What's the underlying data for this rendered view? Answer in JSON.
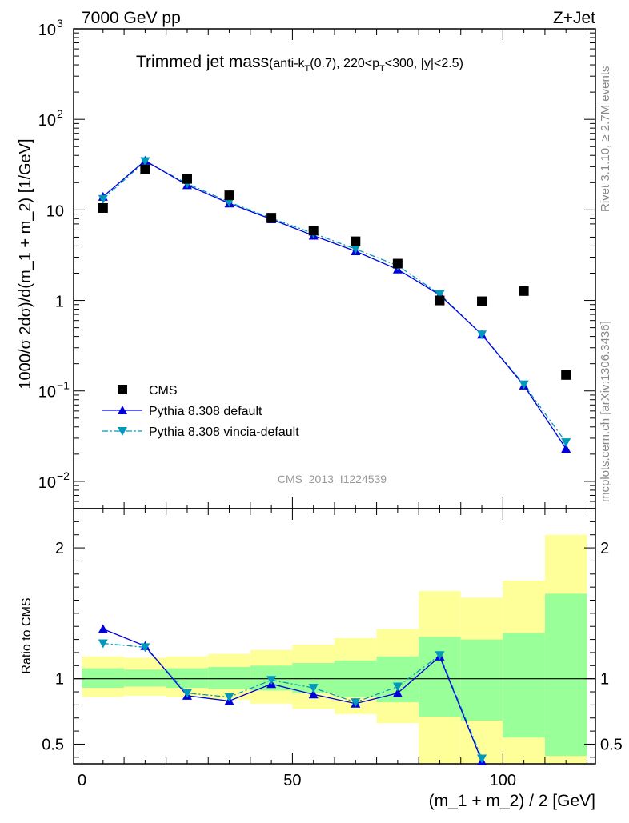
{
  "header": {
    "left": "7000 GeV pp",
    "right": "Z+Jet",
    "title_main": "Trimmed jet mass",
    "title_detail": "(anti-k",
    "title_sub_T": "T",
    "title_detail2": "(0.7), 220<p",
    "title_sub_T2": "T",
    "title_detail3": "<300, |y|<2.5)"
  },
  "side_labels": {
    "rivet": "Rivet 3.1.10, ≥ 2.7M events",
    "mcplots": "mcplots.cern.ch [arXiv:1306.3436]"
  },
  "watermark": "CMS_2013_I1224539",
  "chart_data": [
    {
      "type": "scatter",
      "panel": "main",
      "ylabel": "1000/σ 2dσ)/d(m_1 + m_2) [1/GeV]",
      "yscale": "log",
      "ylim": [
        0.005,
        1000
      ],
      "xlim": [
        -2,
        122
      ],
      "y_tick_labels": [
        "10^-2",
        "10^-1",
        "1",
        "10",
        "10^2",
        "10^3"
      ],
      "legend_placement": "lower-left",
      "x": [
        5,
        15,
        25,
        35,
        45,
        55,
        65,
        75,
        85,
        95,
        105,
        115
      ],
      "series": [
        {
          "name": "CMS",
          "style": "square",
          "color": "#000000",
          "values": [
            10.5,
            28,
            22,
            14.5,
            8.2,
            5.9,
            4.5,
            2.55,
            1.0,
            0.98,
            1.27,
            0.15
          ]
        },
        {
          "name": "Pythia 8.308 default",
          "style": "line-triangle-up",
          "color": "#0000dd",
          "values": [
            14,
            35,
            18.8,
            11.8,
            7.9,
            5.2,
            3.5,
            2.2,
            1.15,
            0.42,
            0.115,
            0.023
          ]
        },
        {
          "name": "Pythia 8.308 vincia-default",
          "style": "dashdot-triangle-down",
          "color": "#0099bb",
          "values": [
            13.2,
            34.5,
            19.5,
            12.2,
            8.1,
            5.5,
            3.7,
            2.42,
            1.17,
            0.42,
            0.118,
            0.027
          ]
        }
      ]
    },
    {
      "type": "line",
      "panel": "ratio",
      "ylabel": "Ratio to CMS",
      "ylim": [
        0.35,
        2.3
      ],
      "xlim": [
        -2,
        122
      ],
      "xlabel": "(m_1 + m_2) / 2 [GeV]",
      "x_tick_labels": [
        "0",
        "50",
        "100"
      ],
      "y_tick_labels": [
        "0.5",
        "1",
        "2"
      ],
      "bins": [
        0,
        10,
        20,
        30,
        40,
        50,
        60,
        70,
        80,
        90,
        100,
        110,
        120
      ],
      "band_green": {
        "lo": [
          0.93,
          0.94,
          0.93,
          0.92,
          0.91,
          0.89,
          0.86,
          0.82,
          0.71,
          0.68,
          0.55,
          0.41
        ],
        "hi": [
          1.08,
          1.07,
          1.08,
          1.09,
          1.1,
          1.12,
          1.14,
          1.17,
          1.32,
          1.3,
          1.35,
          1.65
        ]
      },
      "band_yellow": {
        "lo": [
          0.86,
          0.87,
          0.86,
          0.84,
          0.81,
          0.77,
          0.73,
          0.66,
          0.35,
          0.35,
          0.35,
          0.35
        ],
        "hi": [
          1.17,
          1.16,
          1.17,
          1.19,
          1.22,
          1.26,
          1.31,
          1.38,
          1.67,
          1.62,
          1.75,
          2.1
        ]
      },
      "x": [
        5,
        15,
        25,
        35,
        45,
        55,
        65,
        75,
        85,
        95,
        105,
        115
      ],
      "series": [
        {
          "name": "Pythia 8.308 default",
          "color": "#0000dd",
          "values": [
            1.38,
            1.25,
            0.87,
            0.83,
            0.96,
            0.88,
            0.81,
            0.89,
            1.17,
            0.37,
            null,
            null
          ]
        },
        {
          "name": "Pythia 8.308 vincia-default",
          "color": "#0099bb",
          "values": [
            1.27,
            1.24,
            0.89,
            0.86,
            0.99,
            0.93,
            0.82,
            0.94,
            1.18,
            0.39,
            null,
            null
          ]
        }
      ]
    }
  ]
}
